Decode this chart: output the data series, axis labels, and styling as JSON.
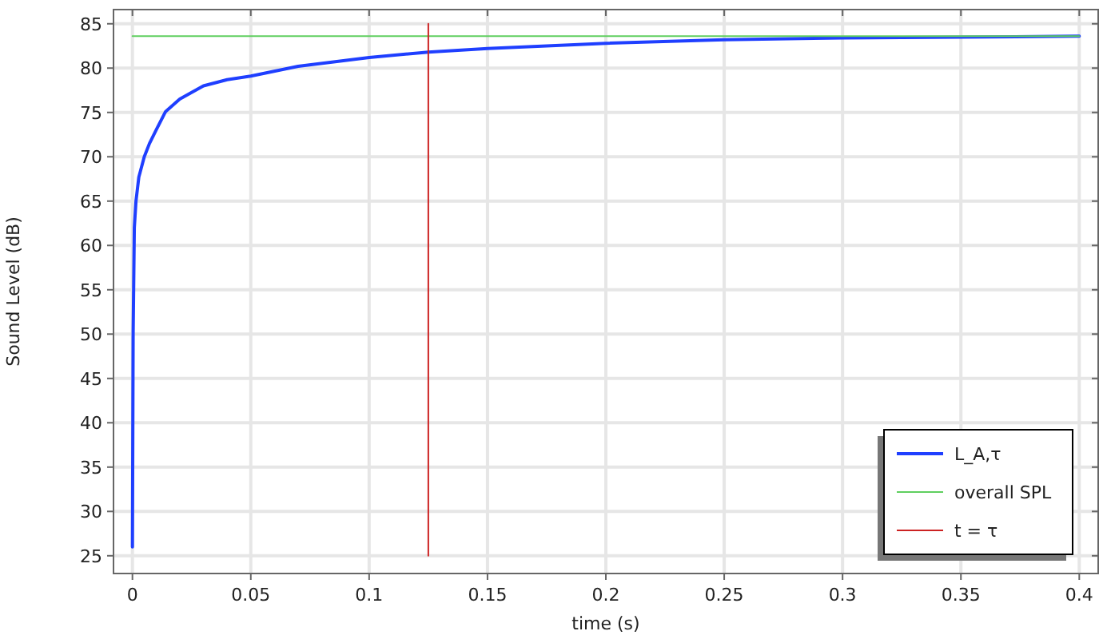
{
  "chart_data": {
    "type": "line",
    "xlabel": "time (s)",
    "ylabel": "Sound Level (dB)",
    "xlim": [
      -0.008,
      0.408
    ],
    "ylim": [
      23,
      86.6
    ],
    "xticks": [
      0,
      0.05,
      0.1,
      0.15,
      0.2,
      0.25,
      0.3,
      0.35,
      0.4
    ],
    "yticks": [
      25,
      30,
      35,
      40,
      45,
      50,
      55,
      60,
      65,
      70,
      75,
      80,
      85
    ],
    "grid": true,
    "legend": "bottom right",
    "line_style": "solid",
    "marker": "none",
    "series": [
      {
        "name": "L_A,τ",
        "color": "#1f3fff",
        "x": [
          0,
          0.0003,
          0.0008,
          0.0015,
          0.0027,
          0.005,
          0.0072,
          0.01,
          0.014,
          0.02,
          0.03,
          0.04,
          0.05,
          0.07,
          0.1,
          0.125,
          0.15,
          0.2,
          0.25,
          0.3,
          0.35,
          0.4
        ],
        "values": [
          26,
          50,
          62,
          65,
          67.7,
          70,
          71.5,
          73,
          75.1,
          76.5,
          78,
          78.7,
          79.1,
          80.2,
          81.2,
          81.8,
          82.2,
          82.8,
          83.2,
          83.4,
          83.5,
          83.6
        ]
      },
      {
        "name": "overall SPL",
        "color": "#5fcf5f",
        "x": [
          0,
          0.4
        ],
        "values": [
          83.6,
          83.6
        ]
      },
      {
        "name": "t = τ",
        "color": "#cc2222",
        "x": [
          0.125,
          0.125
        ],
        "values": [
          25,
          85
        ]
      }
    ]
  }
}
